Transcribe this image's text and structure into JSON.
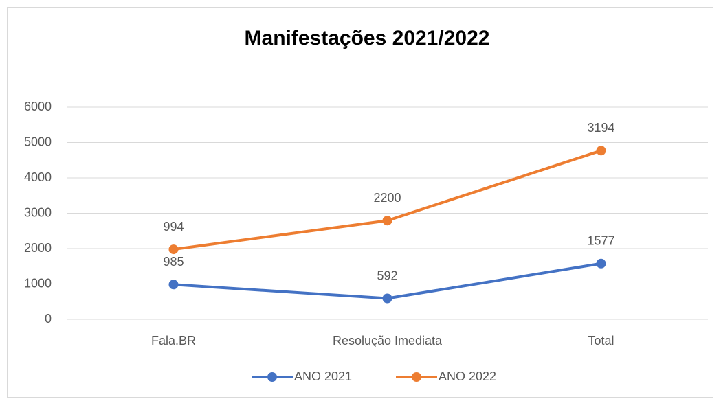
{
  "chart_data": {
    "type": "line",
    "stacked": true,
    "title": "Manifestações 2021/2022",
    "categories": [
      "Fala.BR",
      "Resolução Imediata",
      "Total"
    ],
    "series": [
      {
        "name": "ANO 2021",
        "color": "#4472c4",
        "values": [
          985,
          592,
          1577
        ]
      },
      {
        "name": "ANO 2022",
        "color": "#ed7d31",
        "values": [
          994,
          2200,
          3194
        ]
      }
    ],
    "ylim": [
      0,
      6000
    ],
    "yticks": [
      0,
      1000,
      2000,
      3000,
      4000,
      5000,
      6000
    ],
    "grid": true,
    "legend": "bottom"
  }
}
